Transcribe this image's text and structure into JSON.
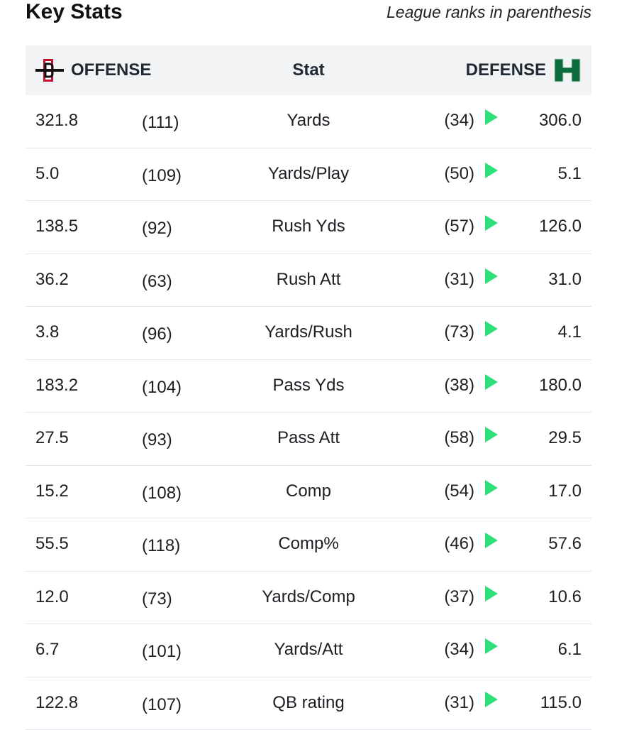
{
  "header": {
    "title": "Key Stats",
    "subtitle": "League ranks in parenthesis"
  },
  "table": {
    "offense_label": "OFFENSE",
    "stat_label": "Stat",
    "defense_label": "DEFENSE",
    "offense_logo": "sdsu-logo",
    "defense_logo": "hawaii-logo",
    "arrow_color": "#2ee07a",
    "rows": [
      {
        "off": "321.8",
        "off_rank": "(111)",
        "stat": "Yards",
        "def_rank": "(34)",
        "def": "306.0"
      },
      {
        "off": "5.0",
        "off_rank": "(109)",
        "stat": "Yards/Play",
        "def_rank": "(50)",
        "def": "5.1"
      },
      {
        "off": "138.5",
        "off_rank": "(92)",
        "stat": "Rush Yds",
        "def_rank": "(57)",
        "def": "126.0"
      },
      {
        "off": "36.2",
        "off_rank": "(63)",
        "stat": "Rush Att",
        "def_rank": "(31)",
        "def": "31.0"
      },
      {
        "off": "3.8",
        "off_rank": "(96)",
        "stat": "Yards/Rush",
        "def_rank": "(73)",
        "def": "4.1"
      },
      {
        "off": "183.2",
        "off_rank": "(104)",
        "stat": "Pass Yds",
        "def_rank": "(38)",
        "def": "180.0"
      },
      {
        "off": "27.5",
        "off_rank": "(93)",
        "stat": "Pass Att",
        "def_rank": "(58)",
        "def": "29.5"
      },
      {
        "off": "15.2",
        "off_rank": "(108)",
        "stat": "Comp",
        "def_rank": "(54)",
        "def": "17.0"
      },
      {
        "off": "55.5",
        "off_rank": "(118)",
        "stat": "Comp%",
        "def_rank": "(46)",
        "def": "57.6"
      },
      {
        "off": "12.0",
        "off_rank": "(73)",
        "stat": "Yards/Comp",
        "def_rank": "(37)",
        "def": "10.6"
      },
      {
        "off": "6.7",
        "off_rank": "(101)",
        "stat": "Yards/Att",
        "def_rank": "(34)",
        "def": "6.1"
      },
      {
        "off": "122.8",
        "off_rank": "(107)",
        "stat": "QB rating",
        "def_rank": "(31)",
        "def": "115.0"
      }
    ]
  }
}
